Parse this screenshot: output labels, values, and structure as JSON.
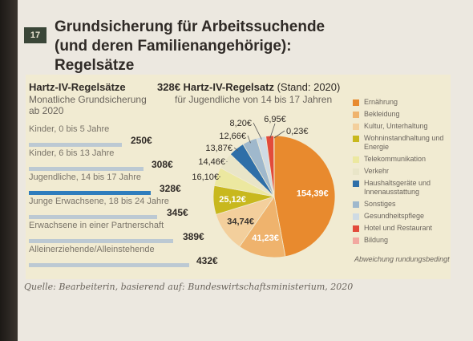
{
  "badge": "17",
  "title_line1": "Grundsicherung für Arbeitssuchende",
  "title_line2": "(und deren Familienangehörige): Regelsätze",
  "bar_chart_head": "Hartz-IV-Regelsätze",
  "bar_chart_sub1": "Monatliche Grundsicherung",
  "bar_chart_sub2": "ab 2020",
  "pie_head_bold": "328€ Hartz-IV-Regelsatz",
  "pie_head_rest": " (Stand: 2020)",
  "pie_sub": "für Jugendliche von 14 bis 17 Jahren",
  "note": "Abweichung rundungsbedingt",
  "source": "Quelle: Bearbeiterin, basierend auf: Bundeswirtschaftsministerium, 2020",
  "colors": {
    "bar": "#bcc9d3",
    "bar_highlight": "#2f7dbd"
  },
  "chart_data": [
    {
      "type": "bar",
      "title": "Hartz-IV-Regelsätze",
      "categories": [
        "Kinder, 0 bis 5 Jahre",
        "Kinder, 6 bis 13 Jahre",
        "Jugendliche, 14 bis 17 Jahre",
        "Junge Erwachsene, 18 bis 24 Jahre",
        "Erwachsene in einer Partnerschaft",
        "Alleinerziehende/Alleinstehende"
      ],
      "values": [
        250,
        308,
        328,
        345,
        389,
        432
      ],
      "value_labels": [
        "250€",
        "308€",
        "328€",
        "345€",
        "389€",
        "432€"
      ],
      "highlight_index": 2
    },
    {
      "type": "pie",
      "title": "328€ Hartz-IV-Regelsatz",
      "labels": [
        "Ernährung",
        "Bekleidung",
        "Kultur, Unterhaltung",
        "Wohninstandhaltung und Energie",
        "Telekommunikation",
        "Verkehr",
        "Haushaltsgeräte und Innenausstattung",
        "Sonstiges",
        "Gesundheitspflege",
        "Hotel und Restaurant",
        "Bildung"
      ],
      "values": [
        154.39,
        41.23,
        34.74,
        25.12,
        16.1,
        14.46,
        13.87,
        12.66,
        8.2,
        6.95,
        0.23
      ],
      "value_labels": [
        "154,39€",
        "41,23€",
        "34,74€",
        "25,12€",
        "16,10€",
        "14,46€",
        "13,87€",
        "12,66€",
        "8,20€",
        "6,95€",
        "0,23€"
      ],
      "colors": [
        "#e88a2e",
        "#efb36d",
        "#f3cf9c",
        "#c8b81e",
        "#ece8a0",
        "#e9e5c8",
        "#2f6fa8",
        "#9fb8cc",
        "#cfdbe4",
        "#e24b3b",
        "#f2a8a0"
      ]
    }
  ]
}
